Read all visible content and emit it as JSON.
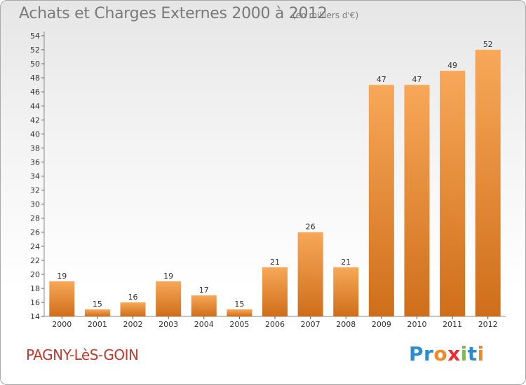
{
  "header": {
    "title": "Achats et Charges Externes 2000 à 2012",
    "subtitle": "(en milliers d'€)"
  },
  "commune": "PAGNY-LèS-GOIN",
  "logo": {
    "letters": [
      "P",
      "r",
      "o",
      "x",
      "i",
      "t",
      "i"
    ],
    "colors": [
      "#2e8bd0",
      "#2e8bd0",
      "#f08a24",
      "#e83030",
      "#7ac143",
      "#2e8bd0",
      "#f08a24"
    ]
  },
  "colors": {
    "bar_light": "#f7a858",
    "bar_dark": "#cf6e1a",
    "axis": "#888888",
    "grid_tick": "#555555"
  },
  "chart_data": {
    "type": "bar",
    "categories": [
      "2000",
      "2001",
      "2002",
      "2003",
      "2004",
      "2005",
      "2006",
      "2007",
      "2008",
      "2009",
      "2010",
      "2011",
      "2012"
    ],
    "values": [
      19,
      15,
      16,
      19,
      17,
      15,
      21,
      26,
      21,
      47,
      47,
      49,
      52
    ],
    "title": "Achats et Charges Externes 2000 à 2012",
    "ylim": [
      14,
      54
    ],
    "yticks": [
      14,
      16,
      18,
      20,
      22,
      24,
      26,
      28,
      30,
      32,
      34,
      36,
      38,
      40,
      42,
      44,
      46,
      48,
      50,
      52,
      54
    ],
    "grid": false,
    "data_labels": true
  }
}
